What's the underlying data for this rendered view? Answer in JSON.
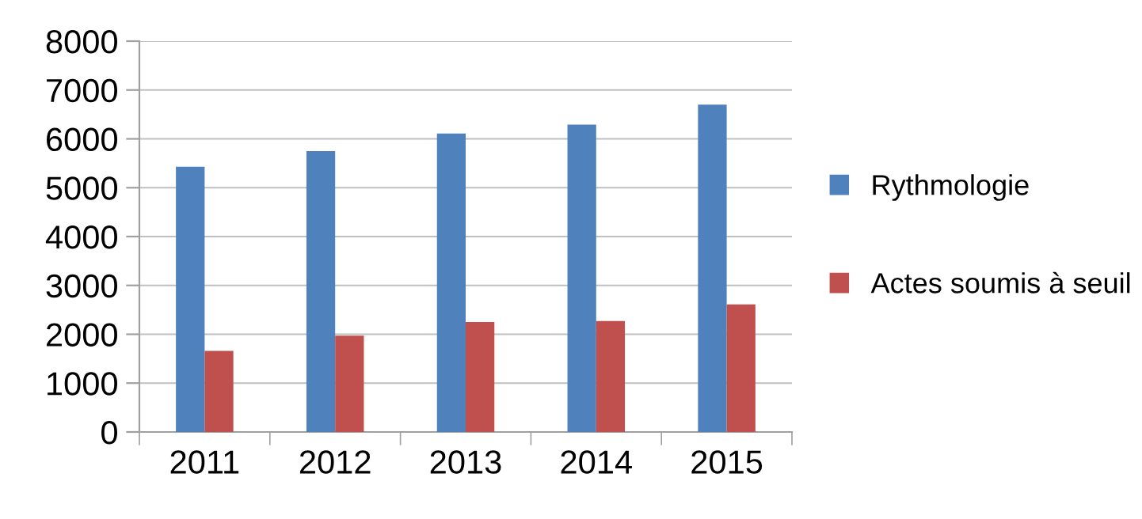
{
  "chart_data": {
    "type": "bar",
    "categories": [
      "2011",
      "2012",
      "2013",
      "2014",
      "2015"
    ],
    "series": [
      {
        "name": "Rythmologie",
        "color": "#4f81bd",
        "values": [
          5430,
          5750,
          6110,
          6290,
          6700
        ]
      },
      {
        "name": "Actes soumis à seuil",
        "color": "#c0504d",
        "values": [
          1660,
          1970,
          2250,
          2270,
          2610
        ]
      }
    ],
    "ylim": [
      0,
      8000
    ],
    "yticks": [
      0,
      1000,
      2000,
      3000,
      4000,
      5000,
      6000,
      7000,
      8000
    ],
    "grid": "y",
    "legend": "right"
  }
}
